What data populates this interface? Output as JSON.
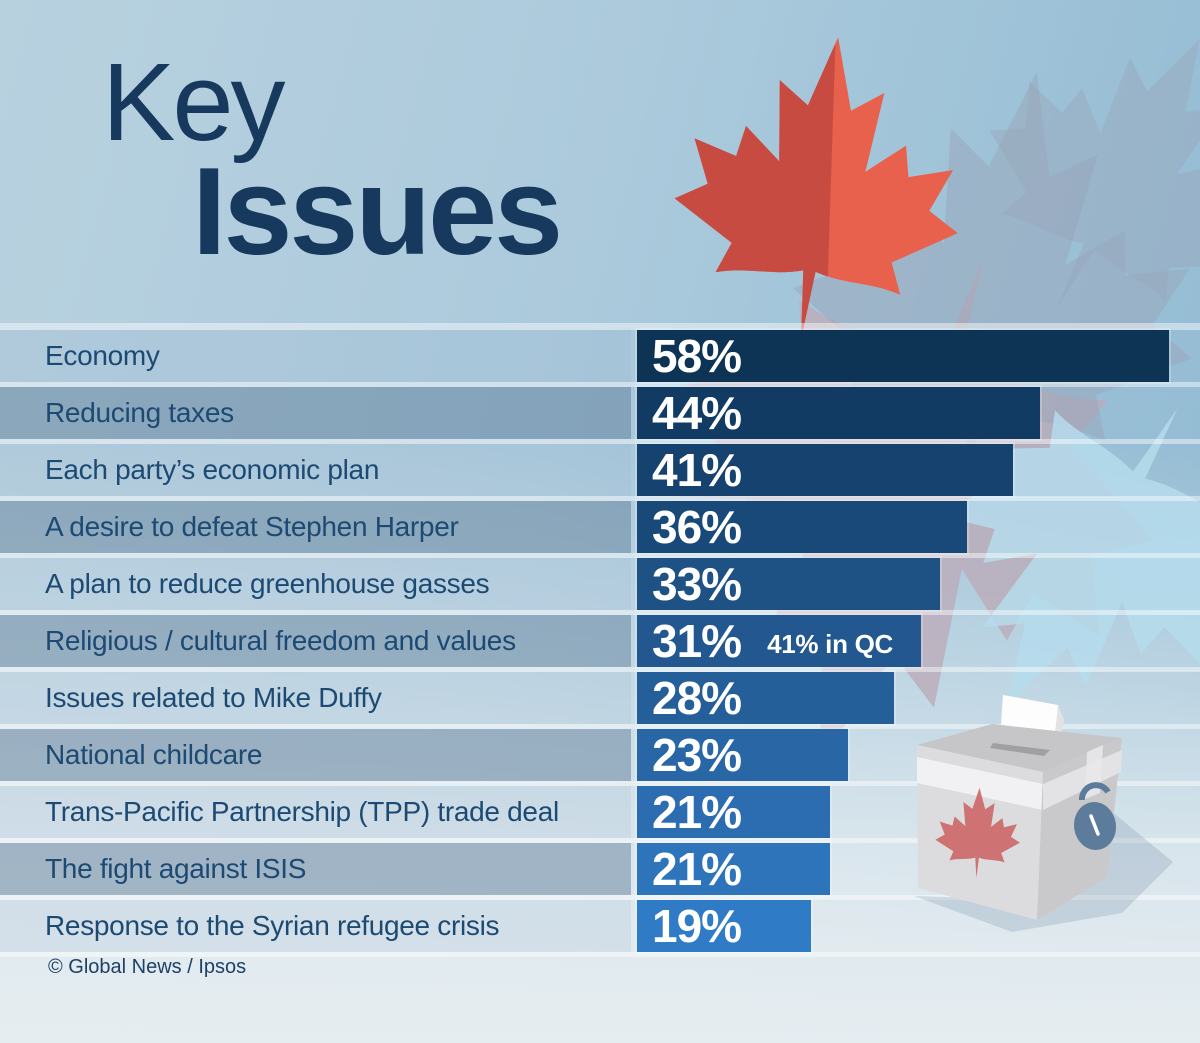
{
  "title": {
    "line1": "Key",
    "line2": "Issues"
  },
  "credit": "© Global News / Ipsos",
  "chart_data": {
    "type": "bar",
    "orientation": "horizontal",
    "title": "Key Issues",
    "xlabel": "",
    "ylabel": "",
    "unit": "%",
    "xlim": [
      0,
      60
    ],
    "grid": false,
    "legend_position": "none",
    "categories": [
      "Economy",
      "Reducing taxes",
      "Each party’s economic plan",
      "A desire to defeat Stephen Harper",
      "A plan to reduce greenhouse gasses",
      "Religious / cultural freedom and values",
      "Issues related to Mike Duffy",
      "National childcare",
      "Trans-Pacific Partnership (TPP) trade deal",
      "The fight against ISIS",
      "Response to the Syrian refugee crisis"
    ],
    "values": [
      58,
      44,
      41,
      36,
      33,
      31,
      28,
      23,
      21,
      21,
      19
    ],
    "value_labels": [
      "58%",
      "44%",
      "41%",
      "36%",
      "33%",
      "31%",
      "28%",
      "23%",
      "21%",
      "21%",
      "19%"
    ],
    "annotations": [
      {
        "category_index": 5,
        "text": "41% in QC"
      }
    ],
    "bar_colors": [
      "#0D3355",
      "#113B63",
      "#15426E",
      "#194979",
      "#1E5184",
      "#22588F",
      "#255F9A",
      "#2866A5",
      "#2B6DB0",
      "#2D74BA",
      "#2F7BC5"
    ],
    "source": "Global News / Ipsos"
  },
  "colors": {
    "title_navy": "#17395E",
    "label_blue": "#1C4A73",
    "maple_leaf_red_light": "#E7614C",
    "maple_leaf_red_dark": "#C74B41",
    "ballot_box_gray": "#DCDCDE",
    "padlock_blue": "#5D7C9C"
  },
  "icons": [
    "maple-leaf-icon",
    "ballot-box-icon",
    "padlock-icon",
    "ballot-paper-icon"
  ]
}
